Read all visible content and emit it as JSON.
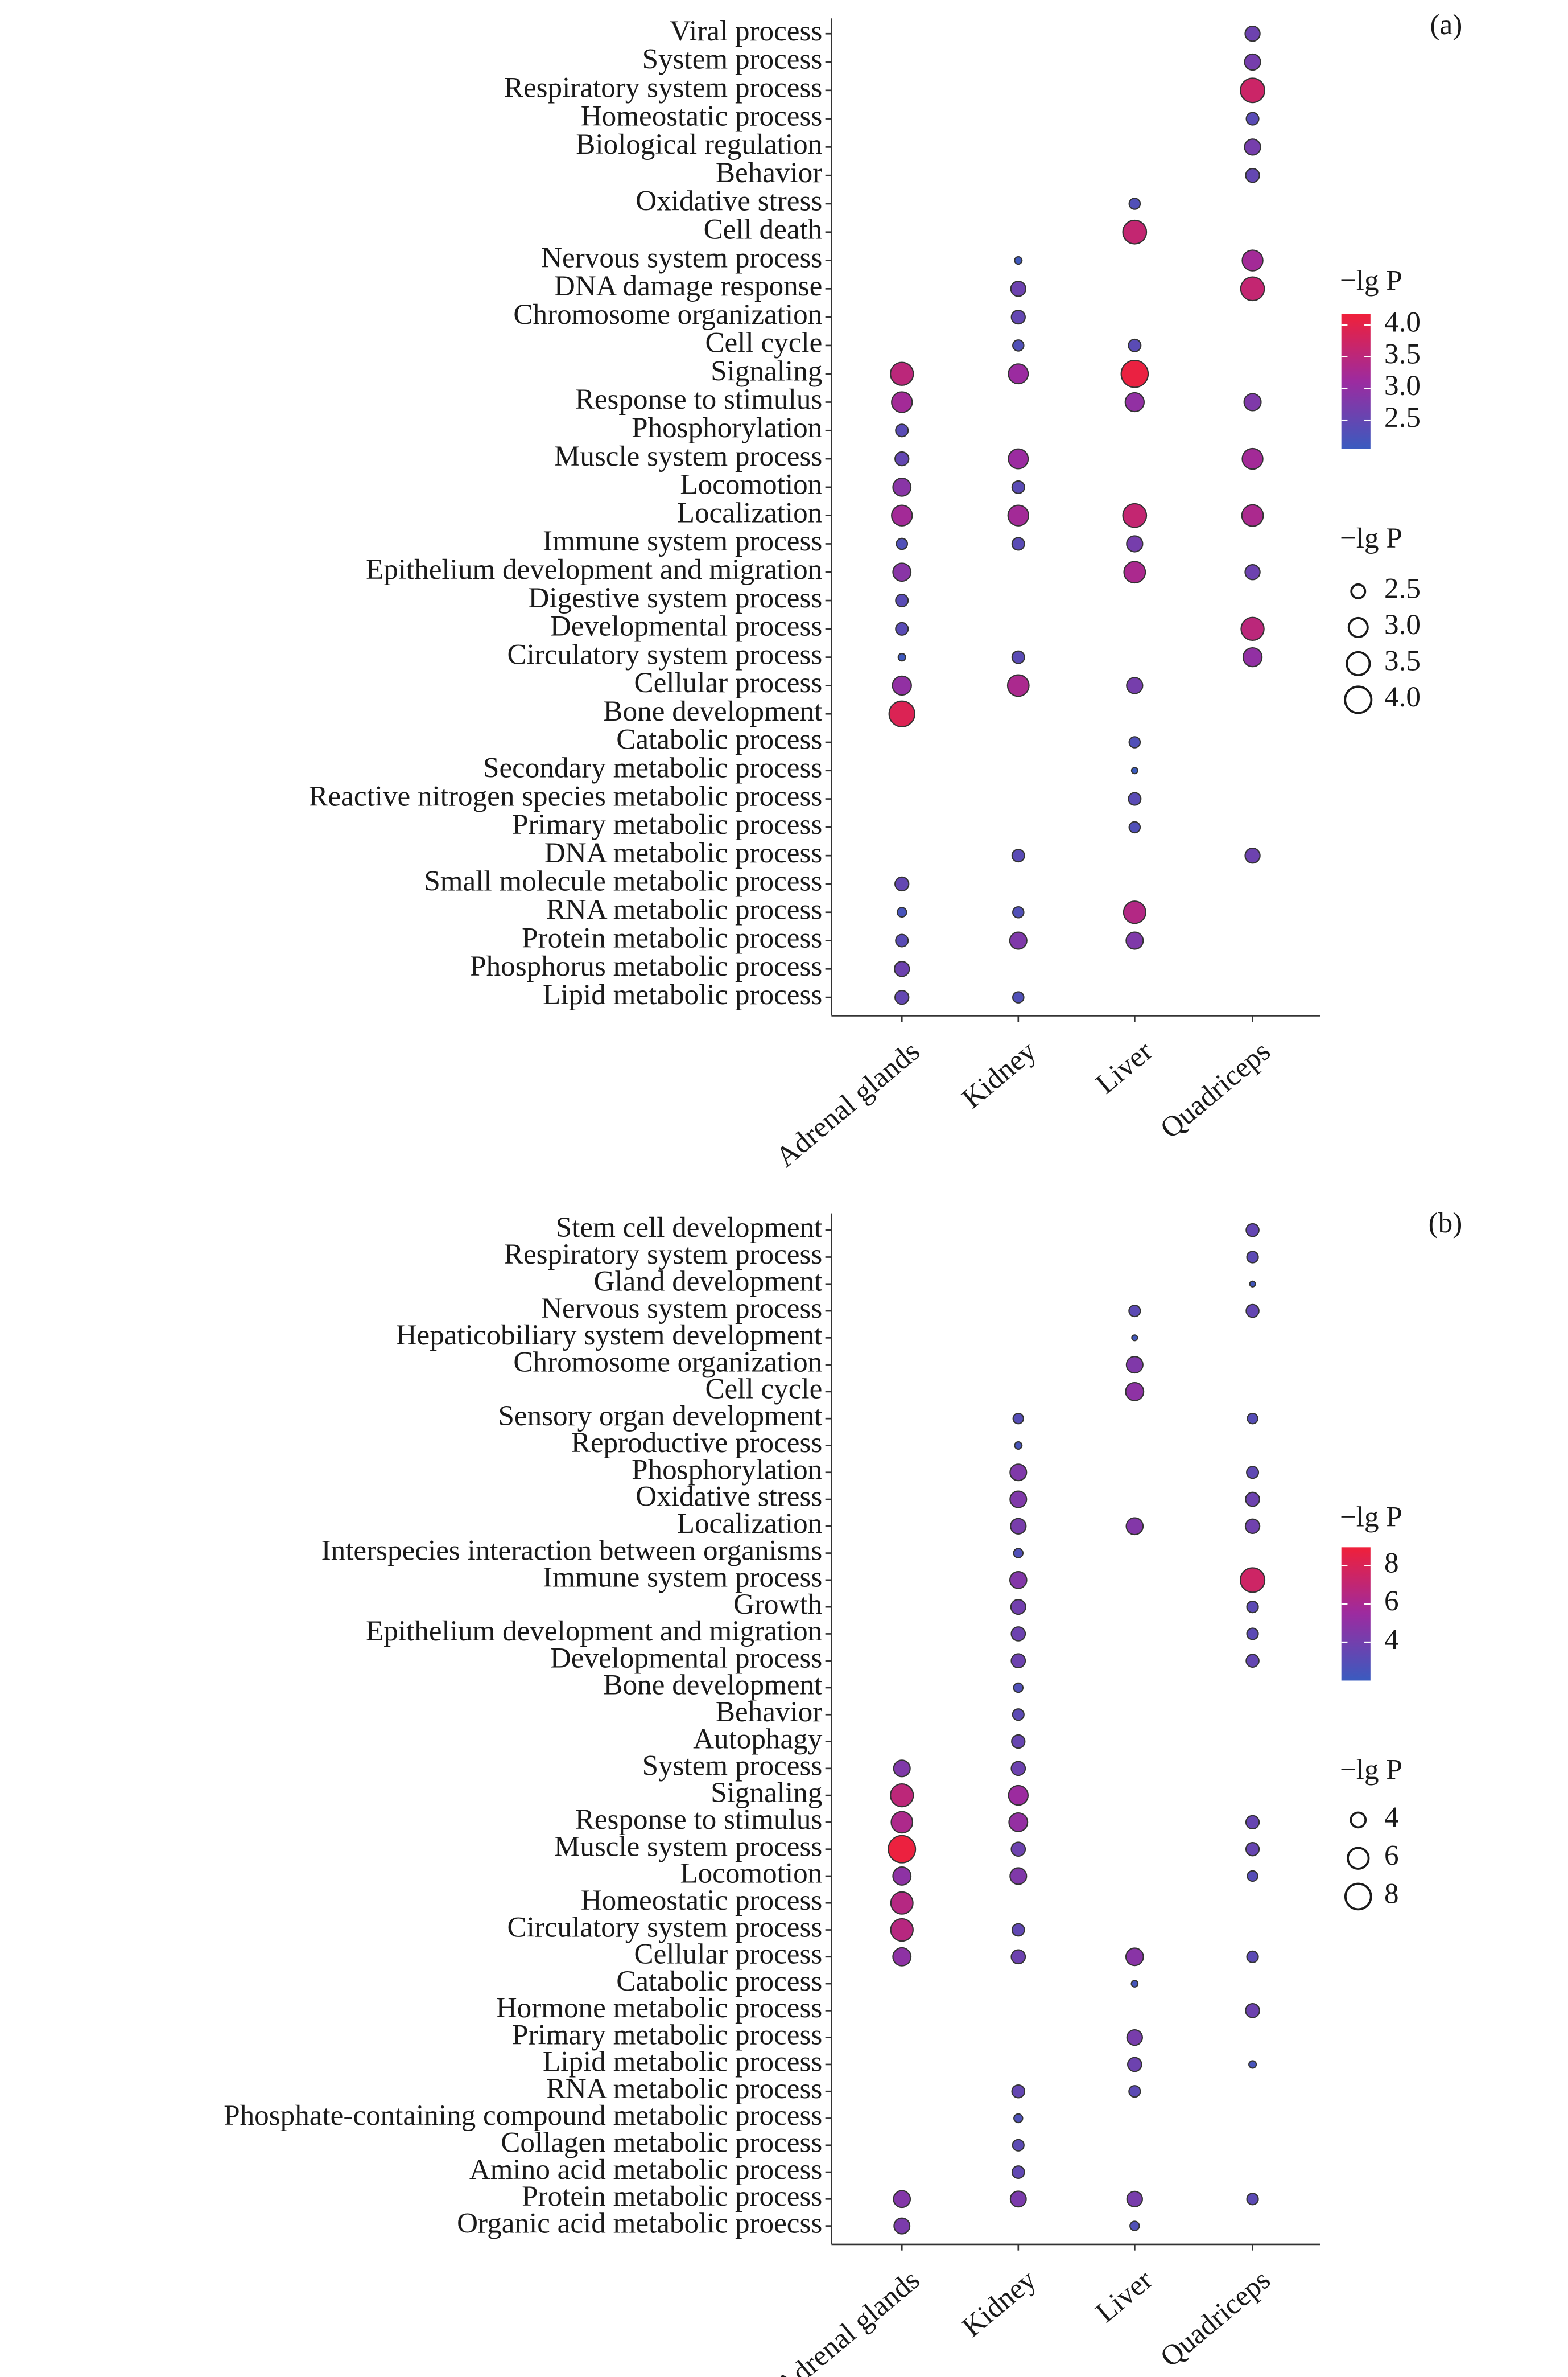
{
  "chart_data": [
    {
      "type": "dot",
      "panel_label": "(a)",
      "x": [
        "Adrenal glands",
        "Kidney",
        "Liver",
        "Quadriceps"
      ],
      "categories": [
        "Viral process",
        "System process",
        "Respiratory system process",
        "Homeostatic process",
        "Biological regulation",
        "Behavior",
        "Oxidative stress",
        "Cell death",
        "Nervous system process",
        "DNA damage response",
        "Chromosome organization",
        "Cell cycle",
        "Signaling",
        "Response to stimulus",
        "Phosphorylation",
        "Muscle system process",
        "Locomotion",
        "Localization",
        "Immune system process",
        "Epithelium development and migration",
        "Digestive system process",
        "Developmental process",
        "Circulatory system process",
        "Cellular process",
        "Bone development",
        "Catabolic process",
        "Secondary metabolic process",
        "Reactive nitrogen species metabolic process",
        "Primary metabolic process",
        "DNA metabolic process",
        "Small molecule metabolic process",
        "RNA metabolic process",
        "Protein metabolic process",
        "Phosphorus metabolic process",
        "Lipid metabolic process"
      ],
      "values": [
        [
          null,
          null,
          null,
          2.6
        ],
        [
          null,
          null,
          null,
          2.7
        ],
        [
          null,
          null,
          null,
          3.7
        ],
        [
          null,
          null,
          null,
          2.4
        ],
        [
          null,
          null,
          null,
          2.7
        ],
        [
          null,
          null,
          null,
          2.5
        ],
        [
          null,
          null,
          2.3,
          null
        ],
        [
          null,
          null,
          3.6,
          null
        ],
        [
          null,
          2.1,
          null,
          3.2
        ],
        [
          null,
          2.6,
          null,
          3.6
        ],
        [
          null,
          2.5,
          null,
          null
        ],
        [
          null,
          2.3,
          2.4,
          null
        ],
        [
          3.5,
          3.1,
          4.1,
          null
        ],
        [
          3.2,
          null,
          3.0,
          2.8
        ],
        [
          2.4,
          null,
          null,
          null
        ],
        [
          2.5,
          3.1,
          null,
          3.2
        ],
        [
          2.9,
          2.4,
          null,
          null
        ],
        [
          3.2,
          3.2,
          3.6,
          3.3
        ],
        [
          2.3,
          2.4,
          2.7,
          null
        ],
        [
          2.9,
          null,
          3.3,
          2.6
        ],
        [
          2.4,
          null,
          null,
          null
        ],
        [
          2.4,
          null,
          null,
          3.5
        ],
        [
          2.1,
          2.4,
          null,
          3.0
        ],
        [
          3.0,
          3.3,
          2.7,
          null
        ],
        [
          3.9,
          null,
          null,
          null
        ],
        [
          null,
          null,
          2.3,
          null
        ],
        [
          null,
          null,
          2.05,
          null
        ],
        [
          null,
          null,
          2.4,
          null
        ],
        [
          null,
          null,
          2.3,
          null
        ],
        [
          null,
          2.4,
          null,
          2.6
        ],
        [
          2.5,
          null,
          null,
          null
        ],
        [
          2.2,
          2.3,
          3.4,
          null
        ],
        [
          2.4,
          2.8,
          2.8,
          null
        ],
        [
          2.6,
          null,
          null,
          null
        ],
        [
          2.5,
          2.3,
          null,
          null
        ]
      ],
      "color_title": "−lg P",
      "colorlim": [
        2.05,
        4.17
      ],
      "colors": [
        "#3a5bbf",
        "#9c2ba0",
        "#f0203a"
      ],
      "color_ticks": [
        2.5,
        {
          "value": 3,
          "label": "3.0"
        },
        3.5,
        {
          "value": 4,
          "label": "4.0"
        }
      ],
      "size_title": "−lg P",
      "sizelim": [
        2.0,
        4.2
      ],
      "size_ticks": [
        2.5,
        {
          "value": 3,
          "label": "3.0"
        },
        3.5,
        {
          "value": 4,
          "label": "4.0"
        }
      ]
    },
    {
      "type": "dot",
      "panel_label": "(b)",
      "x": [
        "Adrenal glands",
        "Kidney",
        "Liver",
        "Quadriceps"
      ],
      "categories": [
        "Stem cell development",
        "Respiratory system process",
        "Gland development",
        "Nervous system process",
        "Hepaticobiliary system development",
        "Chromosome organization",
        "Cell cycle",
        "Sensory organ development",
        "Reproductive process",
        "Phosphorylation",
        "Oxidative stress",
        "Localization",
        "Interspecies interaction between organisms",
        "Immune system process",
        "Growth",
        "Epithelium development and migration",
        "Developmental process",
        "Bone development",
        "Behavior",
        "Autophagy",
        "System process",
        "Signaling",
        "Response to stimulus",
        "Muscle system process",
        "Locomotion",
        "Homeostatic process",
        "Circulatory system process",
        "Cellular process",
        "Catabolic process",
        "Hormone metabolic process",
        "Primary metabolic process",
        "Lipid metabolic process",
        "RNA metabolic process",
        "Phosphate-containing compound metabolic process",
        "Collagen metabolic process",
        "Amino acid metabolic process",
        "Protein metabolic process",
        "Organic acid metabolic proecss"
      ],
      "values": [
        [
          null,
          null,
          null,
          3.5
        ],
        [
          null,
          null,
          null,
          3.2
        ],
        [
          null,
          null,
          null,
          2.3
        ],
        [
          null,
          null,
          3.2,
          3.5
        ],
        [
          null,
          null,
          2.3,
          null
        ],
        [
          null,
          null,
          4.5,
          null
        ],
        [
          null,
          null,
          5.0,
          null
        ],
        [
          null,
          3.0,
          null,
          3.0
        ],
        [
          null,
          2.5,
          null,
          null
        ],
        [
          null,
          4.5,
          null,
          3.3
        ],
        [
          null,
          4.5,
          null,
          3.8
        ],
        [
          null,
          4.2,
          4.6,
          3.9
        ],
        [
          null,
          2.8,
          null,
          null
        ],
        [
          null,
          4.6,
          null,
          7.5
        ],
        [
          null,
          4.0,
          null,
          3.2
        ],
        [
          null,
          3.8,
          null,
          3.2
        ],
        [
          null,
          3.8,
          null,
          3.5
        ],
        [
          null,
          2.8,
          null,
          null
        ],
        [
          null,
          3.2,
          null,
          null
        ],
        [
          null,
          3.6,
          null,
          null
        ],
        [
          4.5,
          3.8,
          null,
          null
        ],
        [
          6.8,
          5.5,
          null,
          null
        ],
        [
          6.2,
          5.2,
          null,
          3.6
        ],
        [
          8.8,
          3.8,
          null,
          3.6
        ],
        [
          5.0,
          4.5,
          null,
          3.0
        ],
        [
          6.5,
          null,
          null,
          null
        ],
        [
          6.6,
          3.4,
          null,
          null
        ],
        [
          5.0,
          3.8,
          4.8,
          3.2
        ],
        [
          null,
          null,
          2.4,
          null
        ],
        [
          null,
          null,
          null,
          3.8
        ],
        [
          null,
          null,
          4.2,
          null
        ],
        [
          null,
          null,
          3.8,
          2.5
        ],
        [
          null,
          3.5,
          3.2,
          null
        ],
        [
          null,
          2.7,
          null,
          null
        ],
        [
          null,
          3.2,
          null,
          null
        ],
        [
          null,
          3.4,
          null,
          null
        ],
        [
          4.6,
          4.3,
          4.2,
          3.2
        ],
        [
          4.3,
          null,
          2.8,
          null
        ]
      ],
      "color_title": "−lg P",
      "colorlim": [
        2.0,
        8.96
      ],
      "colors": [
        "#3a5bbf",
        "#9c2ba0",
        "#f0203a"
      ],
      "color_ticks": [
        4,
        6,
        8
      ],
      "size_title": "−lg P",
      "sizelim": [
        2.2,
        9.0
      ],
      "size_ticks": [
        4,
        6,
        8
      ]
    }
  ]
}
